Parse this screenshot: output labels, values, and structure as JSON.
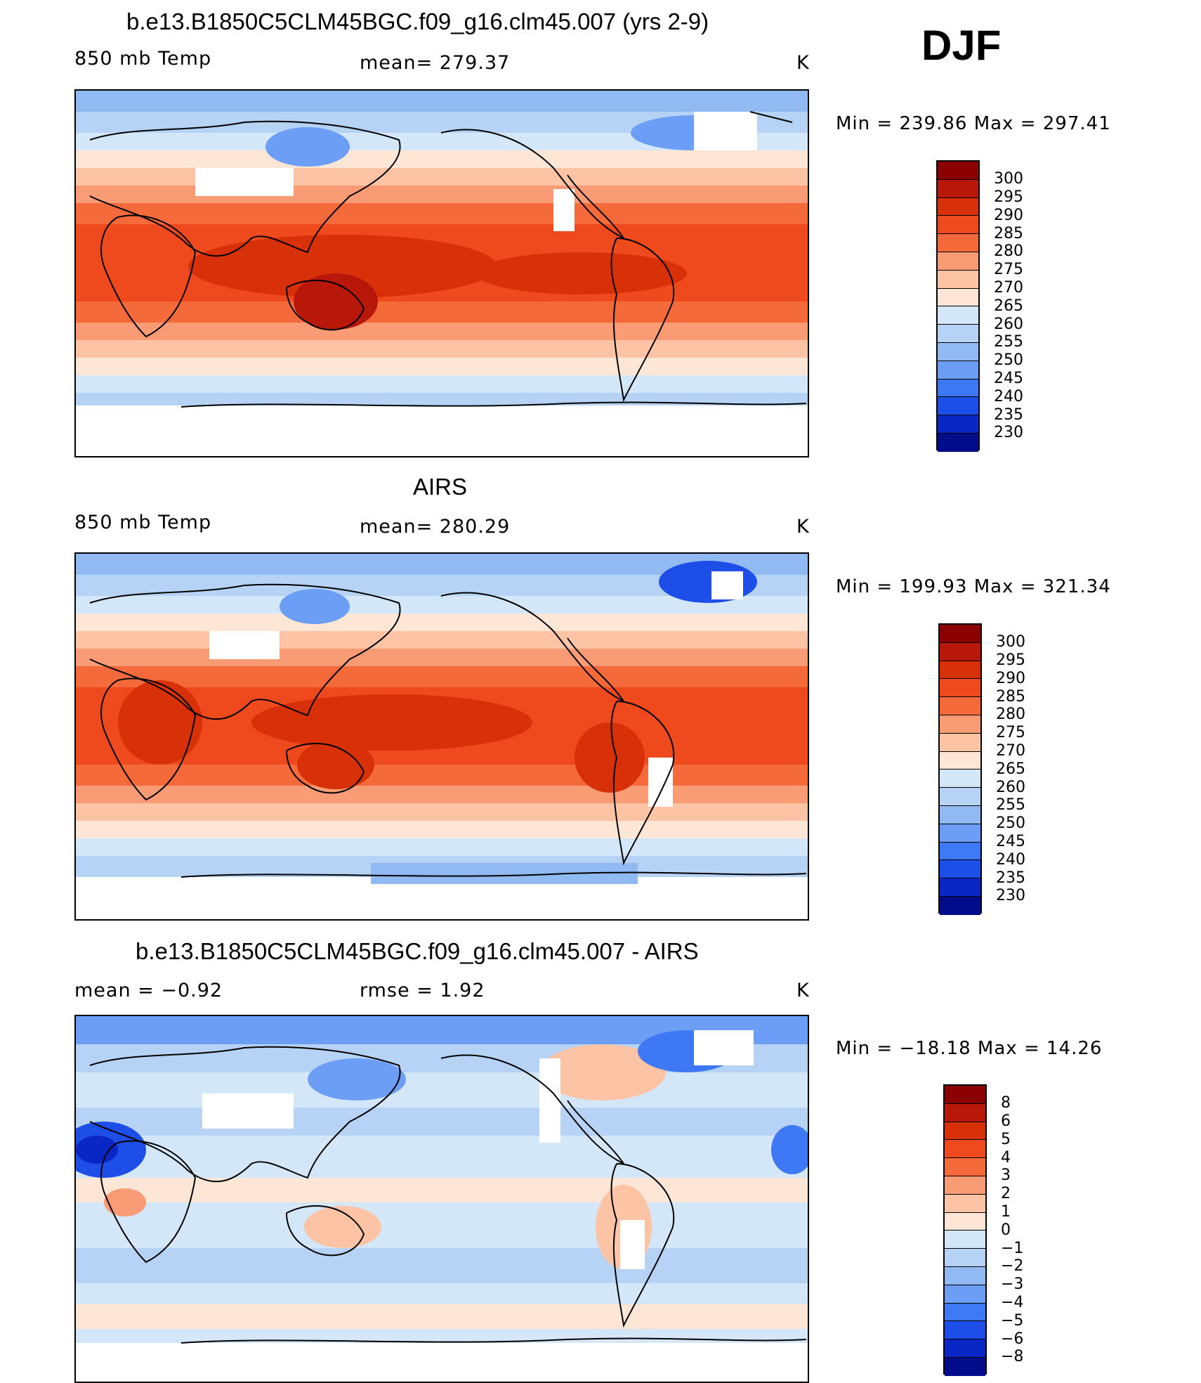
{
  "season": "DJF",
  "units": "K",
  "panels": [
    {
      "id": "model",
      "title": "b.e13.B1850C5CLM45BGC.f09_g16.clm45.007 (yrs 2-9)",
      "left_label": "850 mb Temp",
      "center_label": "mean=  279.37",
      "right_label": "K",
      "minmax": "Min  =  239.86  Max  =  297.41",
      "colorbar": {
        "levels": [
          "300",
          "295",
          "290",
          "285",
          "280",
          "275",
          "270",
          "265",
          "260",
          "255",
          "250",
          "245",
          "240",
          "235",
          "230"
        ],
        "colors": [
          "#8b0000",
          "#b7180a",
          "#d83008",
          "#ee4a1e",
          "#f56a3a",
          "#f99b74",
          "#fcc3a4",
          "#fde6d6",
          "#d4e7f8",
          "#b6d3f5",
          "#92baf2",
          "#6b9ef4",
          "#3f78f4",
          "#1d4ee8",
          "#0a27c6",
          "#000c8a"
        ]
      }
    },
    {
      "id": "obs",
      "title": "AIRS",
      "left_label": "850 mb Temp",
      "center_label": "mean=  280.29",
      "right_label": "K",
      "minmax": "Min  =  199.93  Max  =  321.34",
      "colorbar": {
        "levels": [
          "300",
          "295",
          "290",
          "285",
          "280",
          "275",
          "270",
          "265",
          "260",
          "255",
          "250",
          "245",
          "240",
          "235",
          "230"
        ],
        "colors": [
          "#8b0000",
          "#b7180a",
          "#d83008",
          "#ee4a1e",
          "#f56a3a",
          "#f99b74",
          "#fcc3a4",
          "#fde6d6",
          "#d4e7f8",
          "#b6d3f5",
          "#92baf2",
          "#6b9ef4",
          "#3f78f4",
          "#1d4ee8",
          "#0a27c6",
          "#000c8a"
        ]
      }
    },
    {
      "id": "diff",
      "title": "b.e13.B1850C5CLM45BGC.f09_g16.clm45.007 - AIRS",
      "left_label": "mean =    −0.92",
      "center_label": "rmse =     1.92",
      "right_label": "K",
      "minmax": "Min  =  −18.18  Max  =    14.26",
      "colorbar": {
        "levels": [
          "8",
          "6",
          "5",
          "4",
          "3",
          "2",
          "1",
          "0",
          "−1",
          "−2",
          "−3",
          "−4",
          "−5",
          "−6",
          "−8"
        ],
        "colors": [
          "#8b0000",
          "#b7180a",
          "#d83008",
          "#ee4a1e",
          "#f56a3a",
          "#f99b74",
          "#fcc3a4",
          "#fde6d6",
          "#d4e7f8",
          "#b6d3f5",
          "#92baf2",
          "#6b9ef4",
          "#3f78f4",
          "#1d4ee8",
          "#0a27c6",
          "#000c8a"
        ]
      }
    }
  ]
}
